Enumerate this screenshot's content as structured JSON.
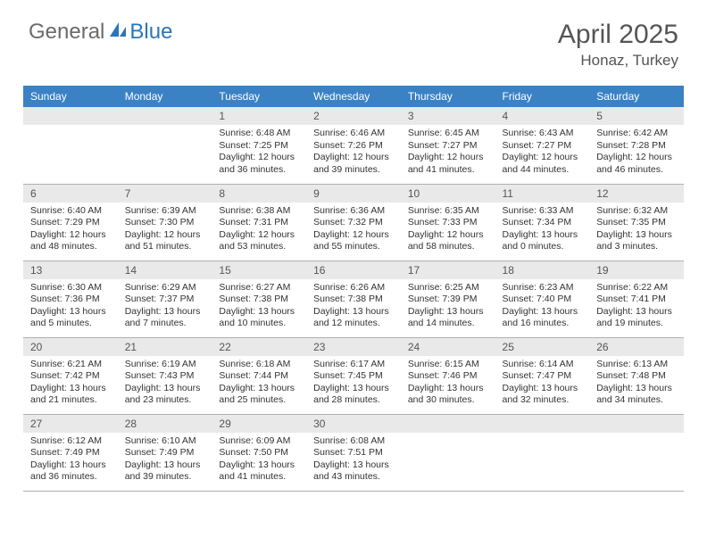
{
  "brand": {
    "general": "General",
    "blue": "Blue"
  },
  "title": {
    "month": "April 2025",
    "location": "Honaz, Turkey"
  },
  "colors": {
    "header_bg": "#3b82c4",
    "header_text": "#ffffff",
    "daynum_bg": "#e9e9e9",
    "border": "#b0b0b0",
    "brand_gray": "#6a6a6a",
    "brand_blue": "#2a76b8"
  },
  "weekdays": [
    "Sunday",
    "Monday",
    "Tuesday",
    "Wednesday",
    "Thursday",
    "Friday",
    "Saturday"
  ],
  "weeks": [
    [
      null,
      null,
      {
        "n": "1",
        "sr": "6:48 AM",
        "ss": "7:25 PM",
        "dl": "12 hours and 36 minutes."
      },
      {
        "n": "2",
        "sr": "6:46 AM",
        "ss": "7:26 PM",
        "dl": "12 hours and 39 minutes."
      },
      {
        "n": "3",
        "sr": "6:45 AM",
        "ss": "7:27 PM",
        "dl": "12 hours and 41 minutes."
      },
      {
        "n": "4",
        "sr": "6:43 AM",
        "ss": "7:27 PM",
        "dl": "12 hours and 44 minutes."
      },
      {
        "n": "5",
        "sr": "6:42 AM",
        "ss": "7:28 PM",
        "dl": "12 hours and 46 minutes."
      }
    ],
    [
      {
        "n": "6",
        "sr": "6:40 AM",
        "ss": "7:29 PM",
        "dl": "12 hours and 48 minutes."
      },
      {
        "n": "7",
        "sr": "6:39 AM",
        "ss": "7:30 PM",
        "dl": "12 hours and 51 minutes."
      },
      {
        "n": "8",
        "sr": "6:38 AM",
        "ss": "7:31 PM",
        "dl": "12 hours and 53 minutes."
      },
      {
        "n": "9",
        "sr": "6:36 AM",
        "ss": "7:32 PM",
        "dl": "12 hours and 55 minutes."
      },
      {
        "n": "10",
        "sr": "6:35 AM",
        "ss": "7:33 PM",
        "dl": "12 hours and 58 minutes."
      },
      {
        "n": "11",
        "sr": "6:33 AM",
        "ss": "7:34 PM",
        "dl": "13 hours and 0 minutes."
      },
      {
        "n": "12",
        "sr": "6:32 AM",
        "ss": "7:35 PM",
        "dl": "13 hours and 3 minutes."
      }
    ],
    [
      {
        "n": "13",
        "sr": "6:30 AM",
        "ss": "7:36 PM",
        "dl": "13 hours and 5 minutes."
      },
      {
        "n": "14",
        "sr": "6:29 AM",
        "ss": "7:37 PM",
        "dl": "13 hours and 7 minutes."
      },
      {
        "n": "15",
        "sr": "6:27 AM",
        "ss": "7:38 PM",
        "dl": "13 hours and 10 minutes."
      },
      {
        "n": "16",
        "sr": "6:26 AM",
        "ss": "7:38 PM",
        "dl": "13 hours and 12 minutes."
      },
      {
        "n": "17",
        "sr": "6:25 AM",
        "ss": "7:39 PM",
        "dl": "13 hours and 14 minutes."
      },
      {
        "n": "18",
        "sr": "6:23 AM",
        "ss": "7:40 PM",
        "dl": "13 hours and 16 minutes."
      },
      {
        "n": "19",
        "sr": "6:22 AM",
        "ss": "7:41 PM",
        "dl": "13 hours and 19 minutes."
      }
    ],
    [
      {
        "n": "20",
        "sr": "6:21 AM",
        "ss": "7:42 PM",
        "dl": "13 hours and 21 minutes."
      },
      {
        "n": "21",
        "sr": "6:19 AM",
        "ss": "7:43 PM",
        "dl": "13 hours and 23 minutes."
      },
      {
        "n": "22",
        "sr": "6:18 AM",
        "ss": "7:44 PM",
        "dl": "13 hours and 25 minutes."
      },
      {
        "n": "23",
        "sr": "6:17 AM",
        "ss": "7:45 PM",
        "dl": "13 hours and 28 minutes."
      },
      {
        "n": "24",
        "sr": "6:15 AM",
        "ss": "7:46 PM",
        "dl": "13 hours and 30 minutes."
      },
      {
        "n": "25",
        "sr": "6:14 AM",
        "ss": "7:47 PM",
        "dl": "13 hours and 32 minutes."
      },
      {
        "n": "26",
        "sr": "6:13 AM",
        "ss": "7:48 PM",
        "dl": "13 hours and 34 minutes."
      }
    ],
    [
      {
        "n": "27",
        "sr": "6:12 AM",
        "ss": "7:49 PM",
        "dl": "13 hours and 36 minutes."
      },
      {
        "n": "28",
        "sr": "6:10 AM",
        "ss": "7:49 PM",
        "dl": "13 hours and 39 minutes."
      },
      {
        "n": "29",
        "sr": "6:09 AM",
        "ss": "7:50 PM",
        "dl": "13 hours and 41 minutes."
      },
      {
        "n": "30",
        "sr": "6:08 AM",
        "ss": "7:51 PM",
        "dl": "13 hours and 43 minutes."
      },
      null,
      null,
      null
    ]
  ],
  "labels": {
    "sunrise": "Sunrise:",
    "sunset": "Sunset:",
    "daylight": "Daylight:"
  }
}
